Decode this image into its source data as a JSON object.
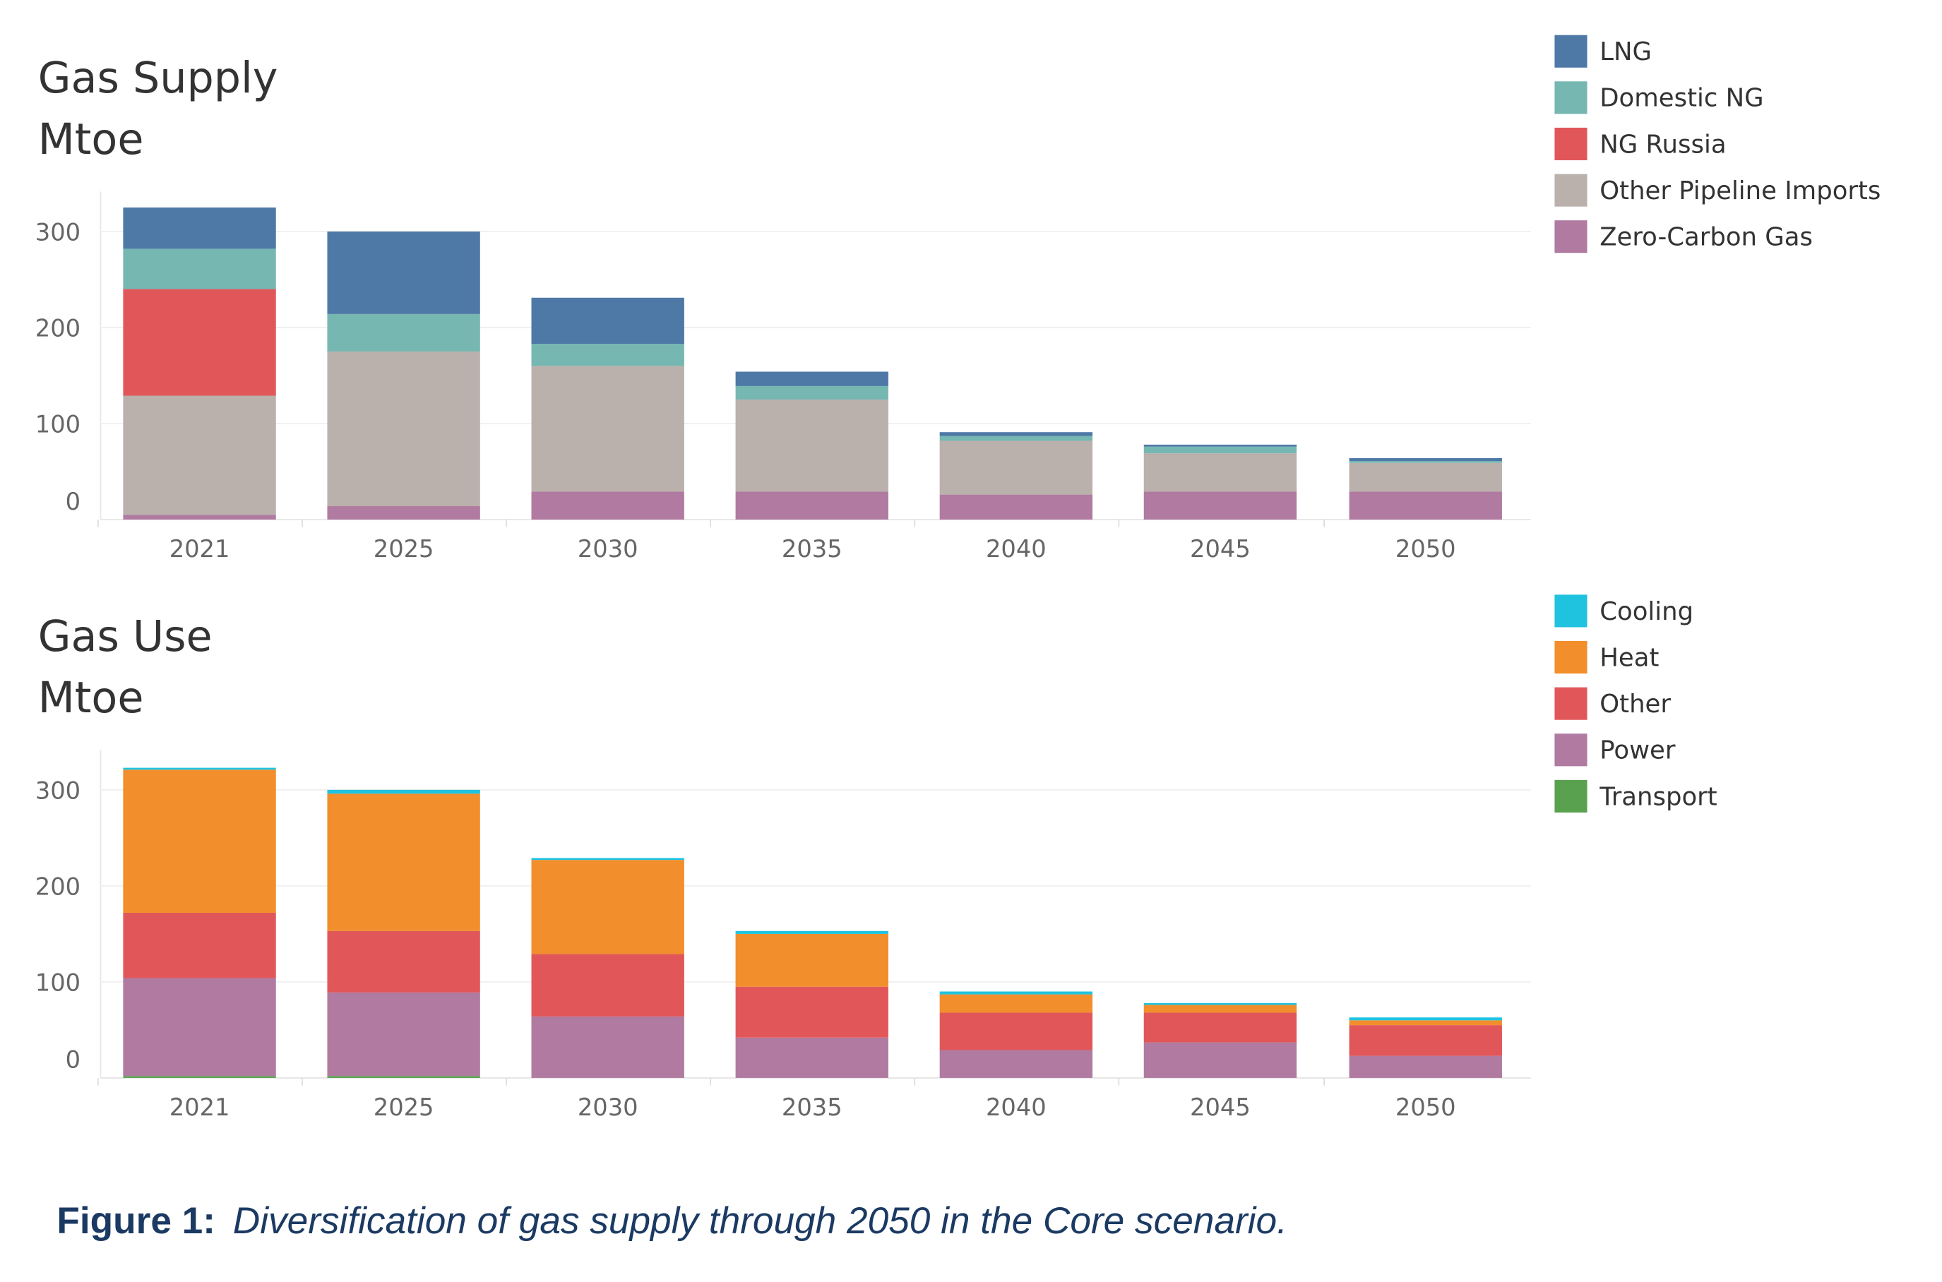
{
  "chart_data": [
    {
      "type": "bar",
      "stacked": true,
      "title": "Gas Supply",
      "ylabel": "Mtoe",
      "categories": [
        "2021",
        "2025",
        "2030",
        "2035",
        "2040",
        "2045",
        "2050"
      ],
      "yticks": [
        0,
        100,
        200,
        300
      ],
      "ylim": [
        0,
        340
      ],
      "grid": true,
      "legend_position": "top-right",
      "series": [
        {
          "name": "Zero-Carbon Gas",
          "color": "#b07aa1",
          "values": [
            5,
            14,
            29,
            29,
            26,
            29,
            29
          ]
        },
        {
          "name": "Other Pipeline Imports",
          "color": "#bab0ac",
          "values": [
            124,
            161,
            131,
            96,
            56,
            40,
            30
          ]
        },
        {
          "name": "NG Russia",
          "color": "#e15759",
          "values": [
            111,
            0,
            0,
            0,
            0,
            0,
            0
          ]
        },
        {
          "name": "Domestic NG",
          "color": "#76b7b2",
          "values": [
            42,
            39,
            23,
            14,
            5,
            7,
            2
          ]
        },
        {
          "name": "LNG",
          "color": "#4e79a7",
          "values": [
            43,
            86,
            48,
            15,
            4,
            2,
            3
          ]
        }
      ],
      "legend": [
        "LNG",
        "Domestic NG",
        "NG Russia",
        "Other Pipeline Imports",
        "Zero-Carbon Gas"
      ]
    },
    {
      "type": "bar",
      "stacked": true,
      "title": "Gas Use",
      "ylabel": "Mtoe",
      "categories": [
        "2021",
        "2025",
        "2030",
        "2035",
        "2040",
        "2045",
        "2050"
      ],
      "yticks": [
        0,
        100,
        200,
        300
      ],
      "ylim": [
        0,
        340
      ],
      "grid": true,
      "legend_position": "top-right",
      "series": [
        {
          "name": "Transport",
          "color": "#59a14f",
          "values": [
            2,
            2,
            0,
            0,
            0,
            0,
            0
          ]
        },
        {
          "name": "Power",
          "color": "#b07aa1",
          "values": [
            102,
            87,
            64,
            42,
            29,
            37,
            23
          ]
        },
        {
          "name": "Other",
          "color": "#e15759",
          "values": [
            68,
            64,
            65,
            53,
            39,
            31,
            32
          ]
        },
        {
          "name": "Heat",
          "color": "#f28e2b",
          "values": [
            149,
            143,
            98,
            55,
            19,
            8,
            5
          ]
        },
        {
          "name": "Cooling",
          "color": "#1fc3df",
          "values": [
            2,
            4,
            2,
            3,
            3,
            2,
            3
          ]
        }
      ],
      "legend": [
        "Cooling",
        "Heat",
        "Other",
        "Power",
        "Transport"
      ]
    }
  ],
  "caption": {
    "label": "Figure 1:",
    "text": "Diversification of gas supply through 2050 in the Core scenario."
  }
}
